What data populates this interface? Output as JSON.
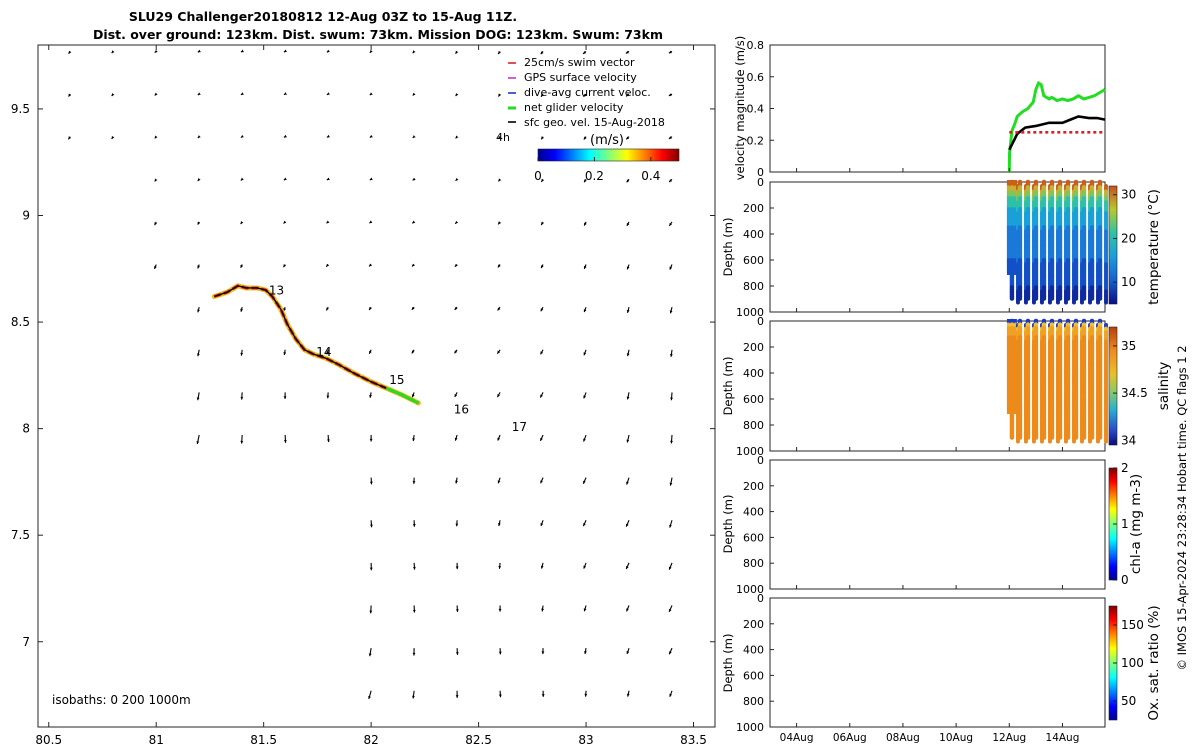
{
  "title": {
    "line1": "SLU29 Challenger20180812 12-Aug 03Z to 15-Aug 11Z.",
    "line2": "Dist. over ground: 123km. Dist. swum: 73km. Mission DOG: 123km. Swum: 73km"
  },
  "colors": {
    "swim": "#e02020",
    "gps": "#cc33cc",
    "dive": "#2233cc",
    "net": "#22dd22",
    "geo": "#000000",
    "black": "#000000"
  },
  "chart_data": [
    {
      "type": "scatter",
      "name": "map",
      "xlim": [
        80.45,
        83.6
      ],
      "ylim": [
        6.6,
        9.8
      ],
      "xticks": [
        "80.5",
        "81",
        "81.5",
        "82",
        "82.5",
        "83",
        "83.5"
      ],
      "xtick_values": [
        80.5,
        81,
        81.5,
        82,
        82.5,
        83,
        83.5
      ],
      "yticks": [
        "7",
        "7.5",
        "8",
        "8.5",
        "9",
        "9.5"
      ],
      "ytick_values": [
        7,
        7.5,
        8,
        8.5,
        9,
        9.5
      ],
      "legend": [
        {
          "label": "25cm/s swim vector",
          "color": "#e02020"
        },
        {
          "label": "GPS surface velocity",
          "color": "#cc33cc"
        },
        {
          "label": "dive-avg current veloc.",
          "color": "#2233cc"
        },
        {
          "label": "net glider velocity",
          "color": "#22dd22"
        },
        {
          "label": "sfc geo. vel. 15-Aug-2018",
          "color": "#000000"
        }
      ],
      "colorbar": {
        "label": "(m/s)",
        "ticks": [
          "0",
          "0.2",
          "0.4"
        ],
        "range": [
          0,
          0.5
        ],
        "extra": "4h"
      },
      "isobath_text": "isobaths: 0   200  1000m",
      "track": [
        [
          81.27,
          8.62
        ],
        [
          81.33,
          8.64
        ],
        [
          81.38,
          8.67
        ],
        [
          81.42,
          8.66
        ],
        [
          81.47,
          8.66
        ],
        [
          81.51,
          8.65
        ],
        [
          81.54,
          8.62
        ],
        [
          81.58,
          8.56
        ],
        [
          81.61,
          8.49
        ],
        [
          81.65,
          8.42
        ],
        [
          81.69,
          8.37
        ],
        [
          81.73,
          8.35
        ],
        [
          81.79,
          8.33
        ],
        [
          81.85,
          8.3
        ],
        [
          81.92,
          8.26
        ],
        [
          82.0,
          8.22
        ],
        [
          82.07,
          8.19
        ],
        [
          82.14,
          8.16
        ],
        [
          82.22,
          8.12
        ]
      ],
      "day_labels": [
        {
          "text": "13",
          "x": 81.56,
          "y": 8.63
        },
        {
          "text": "14",
          "x": 81.78,
          "y": 8.34
        },
        {
          "text": "15",
          "x": 82.12,
          "y": 8.21
        },
        {
          "text": "16",
          "x": 82.42,
          "y": 8.07
        },
        {
          "text": "17",
          "x": 82.69,
          "y": 7.99
        }
      ]
    },
    {
      "type": "line",
      "name": "velocity",
      "ylabel": "velocity magnitude (m/s)",
      "ylim": [
        0,
        0.8
      ],
      "yticks": [
        "0",
        "0.2",
        "0.4",
        "0.6",
        "0.8"
      ],
      "ytick_values": [
        0,
        0.2,
        0.4,
        0.6,
        0.8
      ],
      "xlim": [
        3.0,
        15.6
      ],
      "series": [
        {
          "name": "net glider velocity",
          "color": "#22dd22",
          "x": [
            12.0,
            12.01,
            12.1,
            12.2,
            12.3,
            12.5,
            12.7,
            12.9,
            13.0,
            13.1,
            13.2,
            13.3,
            13.5,
            13.6,
            13.8,
            14.0,
            14.2,
            14.4,
            14.6,
            14.8,
            15.0,
            15.2,
            15.4,
            15.6
          ],
          "y": [
            0.0,
            0.12,
            0.26,
            0.3,
            0.35,
            0.38,
            0.4,
            0.44,
            0.52,
            0.56,
            0.55,
            0.48,
            0.46,
            0.47,
            0.45,
            0.46,
            0.45,
            0.46,
            0.48,
            0.46,
            0.47,
            0.48,
            0.5,
            0.52
          ]
        },
        {
          "name": "sfc geo. speed",
          "color": "#000000",
          "x": [
            12.0,
            12.3,
            12.6,
            13.0,
            13.5,
            14.0,
            14.3,
            14.6,
            15.0,
            15.3,
            15.6
          ],
          "y": [
            0.14,
            0.24,
            0.28,
            0.29,
            0.31,
            0.31,
            0.33,
            0.35,
            0.34,
            0.34,
            0.33
          ]
        },
        {
          "name": "swim speed",
          "color": "#e02020",
          "dashed": true,
          "x": [
            12.0,
            15.6
          ],
          "y": [
            0.25,
            0.25
          ]
        }
      ]
    },
    {
      "type": "heatmap",
      "name": "temperature",
      "ylabel": "Depth (m)",
      "cbar_label": "temperature (°C)",
      "cbar_ticks": [
        "10",
        "20",
        "30"
      ],
      "cbar_values": [
        10,
        20,
        30
      ],
      "cbar_range": [
        5,
        32
      ],
      "cmap": "parula",
      "has_data": true
    },
    {
      "type": "heatmap",
      "name": "salinity",
      "ylabel": "Depth (m)",
      "cbar_label": "salinity",
      "cbar_ticks": [
        "34",
        "34.5",
        "35"
      ],
      "cbar_values": [
        34,
        34.5,
        35
      ],
      "cbar_range": [
        33.95,
        35.2
      ],
      "cmap": "salinity",
      "has_data": true
    },
    {
      "type": "heatmap",
      "name": "chla",
      "ylabel": "Depth (m)",
      "cbar_label": "chl-a (mg m-3)",
      "cbar_ticks": [
        "0",
        "1",
        "2"
      ],
      "cbar_values": [
        0,
        1,
        2
      ],
      "cbar_range": [
        0,
        2
      ],
      "cmap": "jet",
      "has_data": false
    },
    {
      "type": "heatmap",
      "name": "oxygen",
      "ylabel": "Depth (m)",
      "cbar_label": "Ox. sat. ratio (%)",
      "cbar_ticks": [
        "50",
        "100",
        "150"
      ],
      "cbar_values": [
        50,
        100,
        150
      ],
      "cbar_range": [
        25,
        175
      ],
      "cmap": "jet",
      "has_data": false
    }
  ],
  "depth_axis": {
    "ylim": [
      0,
      1000
    ],
    "ticks": [
      "0",
      "200",
      "400",
      "600",
      "800",
      "1000"
    ],
    "tick_values": [
      0,
      200,
      400,
      600,
      800,
      1000
    ]
  },
  "time_axis": {
    "xlim": [
      3.0,
      15.6
    ],
    "ticks": [
      "04Aug",
      "06Aug",
      "08Aug",
      "10Aug",
      "12Aug",
      "14Aug"
    ],
    "tick_values": [
      4,
      6,
      8,
      10,
      12,
      14
    ]
  },
  "profiles": {
    "start_day": 12.0,
    "end_day": 15.6,
    "count": 11
  },
  "footer": "© IMOS 15-Apr-2024 23:28:34 Hobart time. QC flags 1  2"
}
